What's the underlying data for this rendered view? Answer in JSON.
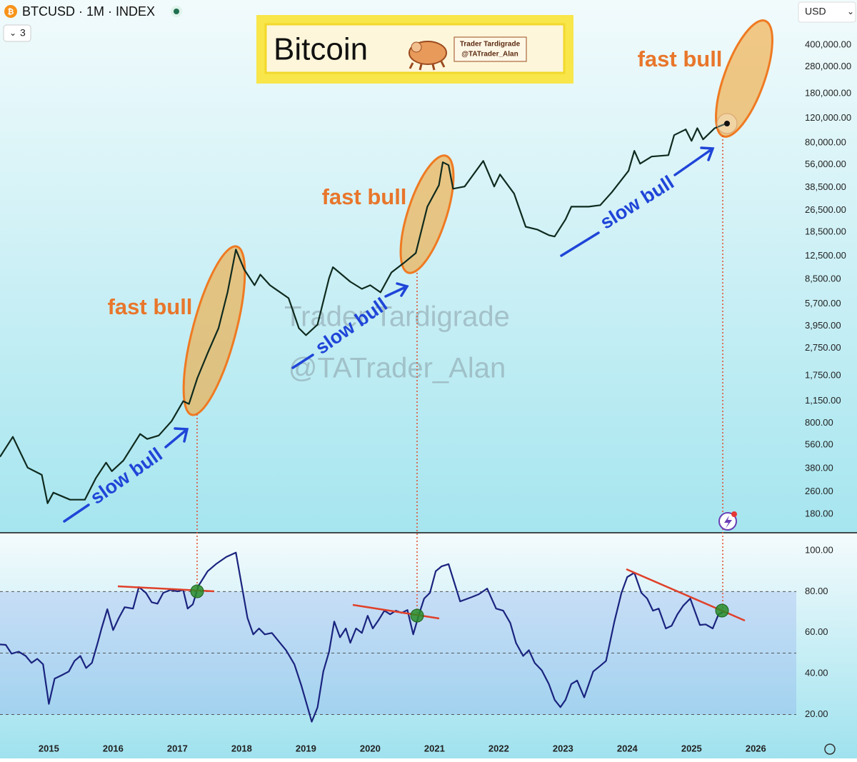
{
  "header": {
    "symbol": "BTCUSD · 1M · INDEX",
    "count": "3",
    "currency": "USD"
  },
  "chart_data": [
    {
      "type": "line",
      "title": "Bitcoin",
      "brand": "Trader Tardigrade",
      "handle": "@TATrader_Alan",
      "log_scale": true,
      "color": "#0f2a1e",
      "xlim": [
        2014.24,
        2026.63
      ],
      "ylim": [
        134,
        838000
      ],
      "yticks": [
        {
          "value": 400000,
          "label": "400,000.00"
        },
        {
          "value": 280000,
          "label": "280,000.00"
        },
        {
          "value": 180000,
          "label": "180,000.00"
        },
        {
          "value": 120000,
          "label": "120,000.00"
        },
        {
          "value": 80000,
          "label": "80,000.00"
        },
        {
          "value": 56000,
          "label": "56,000.00"
        },
        {
          "value": 38500,
          "label": "38,500.00"
        },
        {
          "value": 26500,
          "label": "26,500.00"
        },
        {
          "value": 18500,
          "label": "18,500.00"
        },
        {
          "value": 12500,
          "label": "12,500.00"
        },
        {
          "value": 8500,
          "label": "8,500.00"
        },
        {
          "value": 5700,
          "label": "5,700.00"
        },
        {
          "value": 3950,
          "label": "3,950.00"
        },
        {
          "value": 2750,
          "label": "2,750.00"
        },
        {
          "value": 1750,
          "label": "1,750.00"
        },
        {
          "value": 1150,
          "label": "1,150.00"
        },
        {
          "value": 800,
          "label": "800.00"
        },
        {
          "value": 560,
          "label": "560.00"
        },
        {
          "value": 380,
          "label": "380.00"
        },
        {
          "value": 260,
          "label": "260.00"
        },
        {
          "value": 180,
          "label": "180.00"
        }
      ],
      "x": [
        2014.24,
        2014.44,
        2014.67,
        2014.89,
        2014.98,
        2015.07,
        2015.33,
        2015.56,
        2015.73,
        2015.89,
        2015.98,
        2016.16,
        2016.42,
        2016.53,
        2016.71,
        2016.91,
        2017.09,
        2017.18,
        2017.31,
        2017.47,
        2017.64,
        2017.78,
        2017.91,
        2018.04,
        2018.2,
        2018.29,
        2018.44,
        2018.73,
        2018.89,
        2019.0,
        2019.18,
        2019.36,
        2019.42,
        2019.69,
        2019.87,
        2020.0,
        2020.16,
        2020.33,
        2020.53,
        2020.71,
        2020.89,
        2021.07,
        2021.13,
        2021.22,
        2021.29,
        2021.47,
        2021.76,
        2021.93,
        2022.02,
        2022.24,
        2022.42,
        2022.6,
        2022.78,
        2022.87,
        2023.04,
        2023.13,
        2023.4,
        2023.58,
        2023.76,
        2024.02,
        2024.11,
        2024.2,
        2024.38,
        2024.64,
        2024.73,
        2024.91,
        2025.0,
        2025.09,
        2025.18,
        2025.36,
        2025.56
      ],
      "values": [
        461,
        640,
        386,
        343,
        215,
        256,
        228,
        228,
        324,
        419,
        364,
        434,
        671,
        618,
        655,
        829,
        1150,
        1100,
        1680,
        2530,
        3820,
        6870,
        13900,
        10000,
        7730,
        9210,
        7730,
        6250,
        3820,
        3400,
        4050,
        8690,
        10400,
        8190,
        7280,
        7730,
        6870,
        9540,
        11200,
        13100,
        28100,
        40000,
        58300,
        55600,
        37700,
        39100,
        59600,
        39100,
        47700,
        34800,
        20200,
        19300,
        17600,
        17200,
        22800,
        28100,
        28100,
        28800,
        35600,
        50600,
        70300,
        56900,
        64000,
        65500,
        91000,
        100000,
        82800,
        102000,
        84800,
        102000,
        111000
      ],
      "annotations": [
        "fast bull",
        "fast bull",
        "fast bull",
        "slow bull",
        "slow bull",
        "slow bull",
        "Trader Tardigrade",
        "@TATrader_Alan"
      ]
    },
    {
      "type": "line",
      "color": "#1a237e",
      "xlim": [
        2014.24,
        2026.63
      ],
      "ylim": [
        8,
        108
      ],
      "xticks": [
        2015,
        2016,
        2017,
        2018,
        2019,
        2020,
        2021,
        2022,
        2023,
        2024,
        2025,
        2026
      ],
      "yticks": [
        {
          "value": 100,
          "label": "100.00"
        },
        {
          "value": 80,
          "label": "80.00"
        },
        {
          "value": 60,
          "label": "60.00"
        },
        {
          "value": 40,
          "label": "40.00"
        },
        {
          "value": 20,
          "label": "20.00"
        }
      ],
      "reference_lines": [
        80,
        50,
        20
      ],
      "x": [
        2014.24,
        2014.33,
        2014.42,
        2014.53,
        2014.64,
        2014.73,
        2014.82,
        2014.91,
        2015.0,
        2015.09,
        2015.2,
        2015.31,
        2015.4,
        2015.49,
        2015.58,
        2015.67,
        2015.76,
        2015.82,
        2015.91,
        2016.0,
        2016.09,
        2016.18,
        2016.31,
        2016.4,
        2016.51,
        2016.6,
        2016.69,
        2016.78,
        2016.89,
        2017.0,
        2017.09,
        2017.16,
        2017.24,
        2017.33,
        2017.47,
        2017.6,
        2017.76,
        2017.91,
        2018.09,
        2018.18,
        2018.27,
        2018.36,
        2018.47,
        2018.58,
        2018.69,
        2018.82,
        2018.93,
        2019.02,
        2019.09,
        2019.18,
        2019.27,
        2019.36,
        2019.44,
        2019.53,
        2019.62,
        2019.69,
        2019.78,
        2019.87,
        2019.96,
        2020.04,
        2020.13,
        2020.22,
        2020.31,
        2020.4,
        2020.49,
        2020.58,
        2020.67,
        2020.76,
        2020.84,
        2020.93,
        2021.02,
        2021.11,
        2021.22,
        2021.4,
        2021.58,
        2021.69,
        2021.82,
        2021.96,
        2022.07,
        2022.18,
        2022.27,
        2022.38,
        2022.47,
        2022.56,
        2022.67,
        2022.78,
        2022.87,
        2022.96,
        2023.04,
        2023.13,
        2023.22,
        2023.33,
        2023.47,
        2023.58,
        2023.67,
        2023.8,
        2023.91,
        2024.0,
        2024.11,
        2024.22,
        2024.31,
        2024.4,
        2024.49,
        2024.6,
        2024.69,
        2024.78,
        2024.87,
        2024.98,
        2025.13,
        2025.22,
        2025.33,
        2025.42,
        2025.51
      ],
      "values": [
        54.2,
        54,
        49.7,
        50.7,
        48.6,
        45.2,
        47.2,
        44.5,
        25.2,
        37.5,
        39.2,
        41,
        46.2,
        48.6,
        42.7,
        45.2,
        55,
        62,
        71.4,
        61.2,
        67.2,
        72.4,
        71.7,
        82.2,
        79.4,
        74.8,
        74.1,
        79.4,
        80.8,
        80.1,
        80.8,
        71.7,
        73.8,
        82.9,
        89.9,
        93.4,
        96.9,
        99,
        67.2,
        59.1,
        62,
        59.1,
        59.8,
        55.6,
        51.4,
        44.5,
        34,
        24.2,
        16.5,
        23.5,
        41,
        50.7,
        65.4,
        57.7,
        62,
        55,
        62,
        59.8,
        68.2,
        62,
        66.1,
        70.7,
        68.9,
        70.7,
        69.6,
        71,
        59.1,
        68.9,
        76.6,
        79.4,
        89.9,
        92.3,
        93.4,
        75.2,
        77.3,
        78.7,
        81.5,
        71.7,
        70.7,
        64.7,
        54.9,
        48.6,
        51.4,
        45.2,
        41.6,
        34.9,
        27.2,
        23.6,
        27.2,
        34.9,
        36.6,
        28.4,
        41,
        43.8,
        46.2,
        65.4,
        79.4,
        87.1,
        89.2,
        79.4,
        76.6,
        70.7,
        71.7,
        62,
        63.3,
        68.9,
        73.1,
        76.6,
        63.7,
        64,
        62,
        68.9,
        70.3
      ]
    }
  ]
}
